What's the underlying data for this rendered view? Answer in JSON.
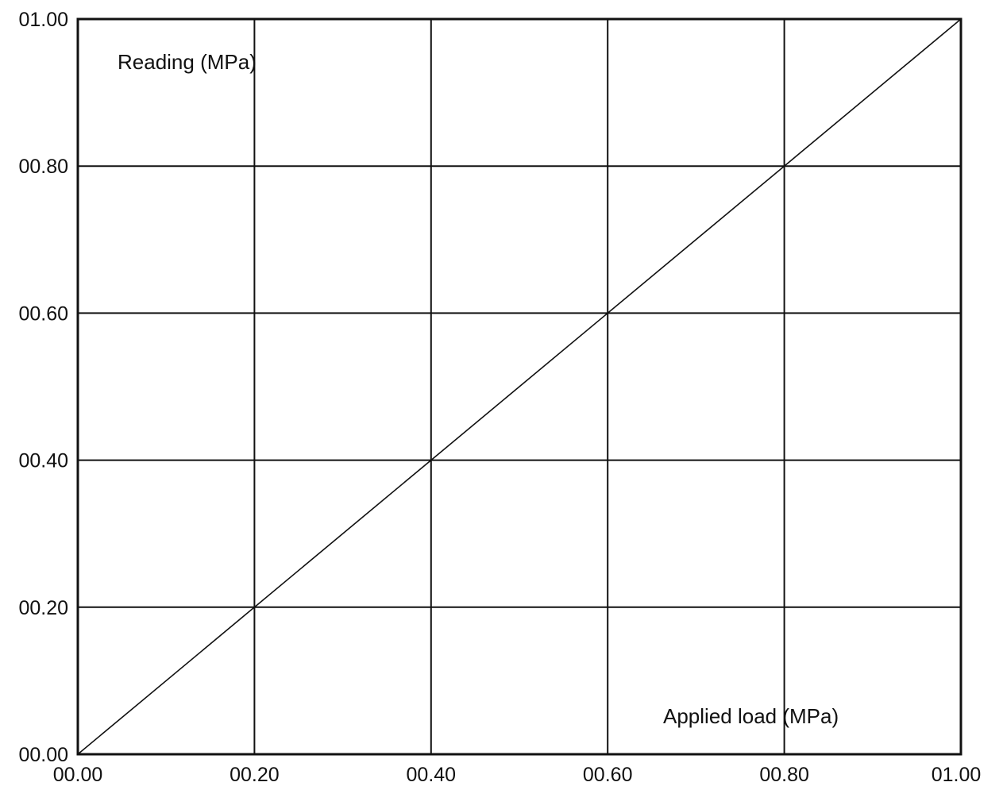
{
  "chart_data": {
    "type": "line",
    "title": "",
    "xlabel": "Applied load (MPa)",
    "ylabel": "Reading (MPa)",
    "xlim": [
      0,
      1
    ],
    "ylim": [
      0,
      1
    ],
    "grid": true,
    "x_ticks": [
      {
        "value": 0.0,
        "label": "00.00"
      },
      {
        "value": 0.2,
        "label": "00.20"
      },
      {
        "value": 0.4,
        "label": "00.40"
      },
      {
        "value": 0.6,
        "label": "00.60"
      },
      {
        "value": 0.8,
        "label": "00.80"
      },
      {
        "value": 1.0,
        "label": "01.00"
      }
    ],
    "y_ticks": [
      {
        "value": 0.0,
        "label": "00.00"
      },
      {
        "value": 0.2,
        "label": "00.20"
      },
      {
        "value": 0.4,
        "label": "00.40"
      },
      {
        "value": 0.6,
        "label": "00.60"
      },
      {
        "value": 0.8,
        "label": "00.80"
      },
      {
        "value": 1.0,
        "label": "01.00"
      }
    ],
    "series": [
      {
        "x": [
          0.0,
          0.2,
          0.4,
          0.6,
          0.8,
          1.0
        ],
        "y": [
          0.0,
          0.2,
          0.4,
          0.6,
          0.8,
          1.0
        ],
        "color": "#111111"
      }
    ]
  }
}
